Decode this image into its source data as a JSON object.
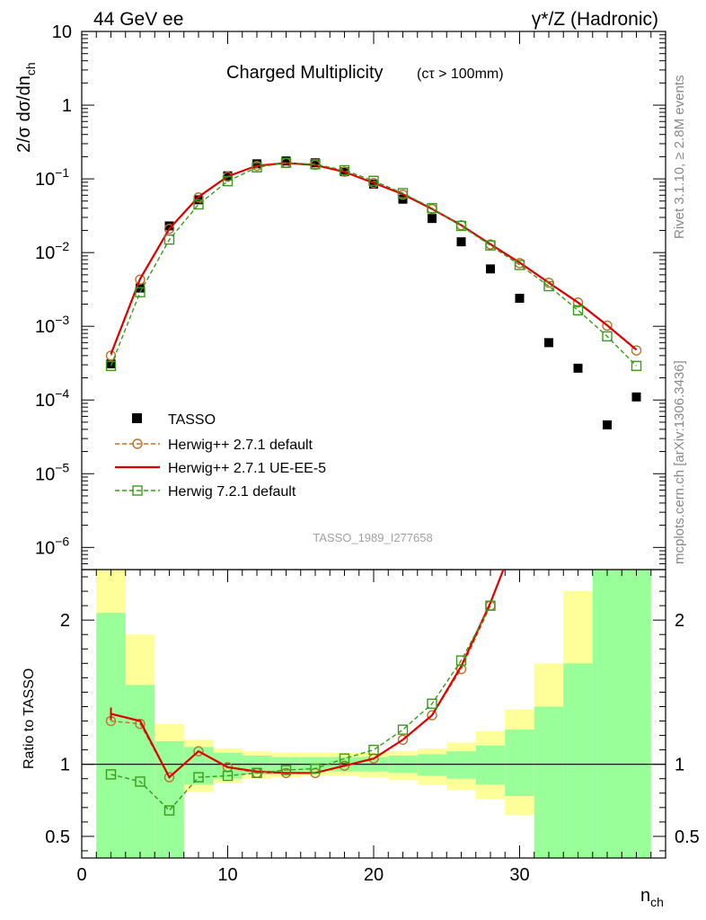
{
  "header": {
    "left": "44 GeV ee",
    "right": "γ*/Z (Hadronic)"
  },
  "side_notes": {
    "rivet": "Rivet 3.1.10, ≥ 2.8M events",
    "mcplots": "mcplots.cern.ch [arXiv:1306.3436]"
  },
  "chart_data": [
    {
      "type": "scatter",
      "panel": "main",
      "title": "Charged Multiplicity",
      "title_suffix": "(cτ > 100mm)",
      "ylabel": "2/σ dσ/dn_ch",
      "yscale": "log",
      "ylim": [
        5e-07,
        10
      ],
      "xlim": [
        0,
        40
      ],
      "reference_label": "TASSO_1989_I277658",
      "legend_position": "lower-left",
      "y_ticks": [
        {
          "value": 10,
          "base": "10",
          "exp": ""
        },
        {
          "value": 1,
          "base": "1",
          "exp": ""
        },
        {
          "value": 0.1,
          "base": "10",
          "exp": "−1"
        },
        {
          "value": 0.01,
          "base": "10",
          "exp": "−2"
        },
        {
          "value": 0.001,
          "base": "10",
          "exp": "−3"
        },
        {
          "value": 0.0001,
          "base": "10",
          "exp": "−4"
        },
        {
          "value": 1e-05,
          "base": "10",
          "exp": "−5"
        },
        {
          "value": 1e-06,
          "base": "10",
          "exp": "−6"
        }
      ],
      "series": [
        {
          "name": "TASSO",
          "style": "data-square",
          "color": "#000000",
          "x": [
            2,
            4,
            6,
            8,
            10,
            12,
            14,
            16,
            18,
            20,
            22,
            24,
            26,
            28,
            30,
            32,
            34,
            36,
            38
          ],
          "y": [
            0.00031,
            0.0033,
            0.023,
            0.052,
            0.11,
            0.16,
            0.175,
            0.165,
            0.125,
            0.085,
            0.053,
            0.029,
            0.014,
            0.006,
            0.0024,
            0.0006,
            0.00027,
            4.6e-05,
            0.00011
          ]
        },
        {
          "name": "Herwig++ 2.7.1 default",
          "style": "dashed-circle",
          "color": "#b8732e",
          "x": [
            2,
            4,
            6,
            8,
            10,
            12,
            14,
            16,
            18,
            20,
            22,
            24,
            26,
            28,
            30,
            32,
            34,
            36,
            38
          ],
          "y": [
            0.0004,
            0.0043,
            0.021,
            0.056,
            0.107,
            0.15,
            0.165,
            0.155,
            0.125,
            0.088,
            0.061,
            0.039,
            0.0235,
            0.0129,
            0.0072,
            0.0039,
            0.0021,
            0.00102,
            0.00047
          ]
        },
        {
          "name": "Herwig++ 2.7.1 UE-EE-5",
          "style": "solid-line",
          "color": "#e00000",
          "x": [
            2,
            4,
            6,
            8,
            10,
            12,
            14,
            16,
            18,
            20,
            22,
            24,
            26,
            28,
            30,
            32,
            34,
            36,
            38
          ],
          "y": [
            0.00042,
            0.0044,
            0.021,
            0.057,
            0.108,
            0.151,
            0.164,
            0.154,
            0.124,
            0.088,
            0.062,
            0.039,
            0.0235,
            0.013,
            0.0073,
            0.0039,
            0.0021,
            0.00103,
            0.00048
          ]
        },
        {
          "name": "Herwig 7.2.1 default",
          "style": "dashed-square",
          "color": "#3a9a1a",
          "x": [
            2,
            4,
            6,
            8,
            10,
            12,
            14,
            16,
            18,
            20,
            22,
            24,
            26,
            28,
            30,
            32,
            34,
            36,
            38
          ],
          "y": [
            0.00029,
            0.0029,
            0.015,
            0.045,
            0.093,
            0.143,
            0.165,
            0.158,
            0.131,
            0.094,
            0.064,
            0.04,
            0.023,
            0.0125,
            0.0068,
            0.0035,
            0.00165,
            0.00073,
            0.00029
          ]
        }
      ]
    },
    {
      "type": "line",
      "panel": "ratio",
      "ylabel": "Ratio to TASSO",
      "xlabel": "n_ch",
      "ylim": [
        0.35,
        2.35
      ],
      "xlim": [
        0,
        40
      ],
      "x_ticks": [
        0,
        10,
        20,
        30
      ],
      "y_ticks": [
        0.5,
        1,
        2
      ],
      "uncertainty_bands": {
        "x_edges": [
          1,
          3,
          5,
          7,
          9,
          11,
          13,
          15,
          17,
          19,
          21,
          23,
          25,
          27,
          29,
          31,
          33,
          35,
          39
        ],
        "green_lo": [
          0.35,
          0.35,
          0.35,
          0.86,
          0.9,
          0.93,
          0.94,
          0.95,
          0.95,
          0.95,
          0.94,
          0.92,
          0.9,
          0.86,
          0.78,
          0.35,
          0.35,
          0.35
        ],
        "green_hi": [
          2.05,
          1.55,
          1.16,
          1.12,
          1.08,
          1.06,
          1.05,
          1.05,
          1.05,
          1.05,
          1.06,
          1.07,
          1.09,
          1.13,
          1.24,
          1.4,
          1.7,
          2.35
        ],
        "yellow_lo": [
          0.35,
          0.58,
          0.35,
          0.81,
          0.87,
          0.9,
          0.91,
          0.92,
          0.92,
          0.91,
          0.89,
          0.86,
          0.82,
          0.76,
          0.65,
          0.5,
          0.35,
          0.35
        ],
        "yellow_hi": [
          2.35,
          1.9,
          1.28,
          1.17,
          1.11,
          1.09,
          1.08,
          1.08,
          1.08,
          1.08,
          1.09,
          1.11,
          1.15,
          1.23,
          1.38,
          1.7,
          2.2,
          2.35
        ]
      },
      "series": [
        {
          "name": "Herwig++ 2.7.1 default",
          "color": "#b8732e",
          "x": [
            2,
            4,
            6,
            8,
            10,
            12,
            14,
            16,
            18,
            20,
            22,
            24,
            26,
            28
          ],
          "y": [
            1.3,
            1.28,
            0.91,
            1.09,
            0.98,
            0.94,
            0.94,
            0.94,
            0.99,
            1.04,
            1.17,
            1.34,
            1.66,
            2.1
          ]
        },
        {
          "name": "Herwig++ 2.7.1 UE-EE-5",
          "color": "#e00000",
          "x": [
            2,
            4,
            6,
            8,
            10,
            12,
            14,
            16,
            18,
            20,
            22,
            24,
            26,
            28,
            29
          ],
          "y": [
            1.35,
            1.3,
            0.91,
            1.09,
            0.98,
            0.95,
            0.94,
            0.94,
            0.99,
            1.04,
            1.17,
            1.34,
            1.68,
            2.12,
            2.38
          ]
        },
        {
          "name": "Herwig 7.2.1 default",
          "color": "#3a9a1a",
          "x": [
            2,
            4,
            6,
            8,
            10,
            12,
            14,
            16,
            18,
            20,
            22,
            24,
            26,
            28
          ],
          "y": [
            0.93,
            0.88,
            0.68,
            0.91,
            0.92,
            0.94,
            0.96,
            0.97,
            1.04,
            1.1,
            1.24,
            1.42,
            1.72,
            2.1
          ]
        }
      ]
    }
  ]
}
